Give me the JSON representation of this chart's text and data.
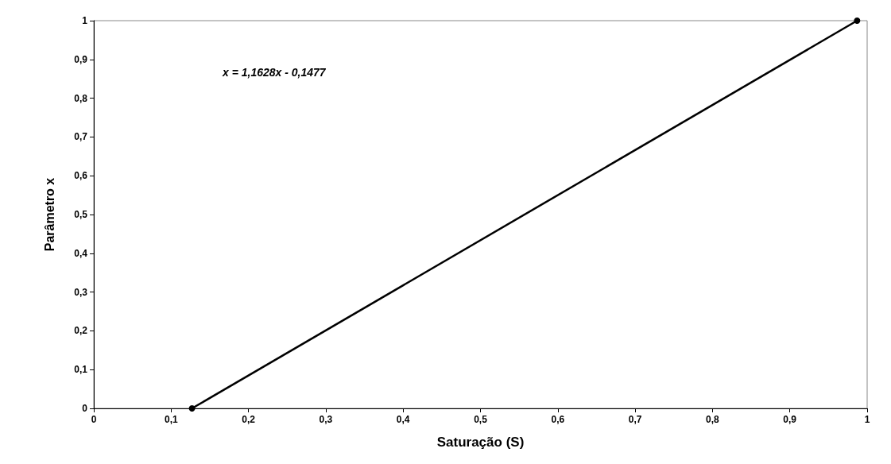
{
  "chart_data": {
    "type": "line",
    "xlabel": "Saturação (S)",
    "ylabel": "Parâmetro x",
    "annotations": [
      "x = 1,1628x - 0,1477"
    ],
    "x": [
      0.127,
      0.987
    ],
    "series": [
      {
        "color": "#000000",
        "values": [
          0,
          1
        ]
      }
    ],
    "xlim": [
      0,
      1
    ],
    "xticks": [
      0,
      {
        "value": 0.1,
        "label": "0,1"
      },
      {
        "value": 0.2,
        "label": "0,2"
      },
      {
        "value": 0.3,
        "label": "0,3"
      },
      {
        "value": 0.4,
        "label": "0,4"
      },
      {
        "value": 0.5,
        "label": "0,5"
      },
      {
        "value": 0.6,
        "label": "0,6"
      },
      {
        "value": 0.7,
        "label": "0,7"
      },
      {
        "value": 0.8,
        "label": "0,8"
      },
      {
        "value": 0.9,
        "label": "0,9"
      },
      1
    ],
    "ylim": [
      0,
      1
    ],
    "yticks": [
      0,
      {
        "value": 0.1,
        "label": "0,1"
      },
      {
        "value": 0.2,
        "label": "0,2"
      },
      {
        "value": 0.3,
        "label": "0,3"
      },
      {
        "value": 0.4,
        "label": "0,4"
      },
      {
        "value": 0.5,
        "label": "0,5"
      },
      {
        "value": 0.6,
        "label": "0,6"
      },
      {
        "value": 0.7,
        "label": "0,7"
      },
      {
        "value": 0.8,
        "label": "0,8"
      },
      {
        "value": 0.9,
        "label": "0,9"
      },
      1
    ],
    "grid": false,
    "marker": "circle",
    "line_style": "solid"
  }
}
